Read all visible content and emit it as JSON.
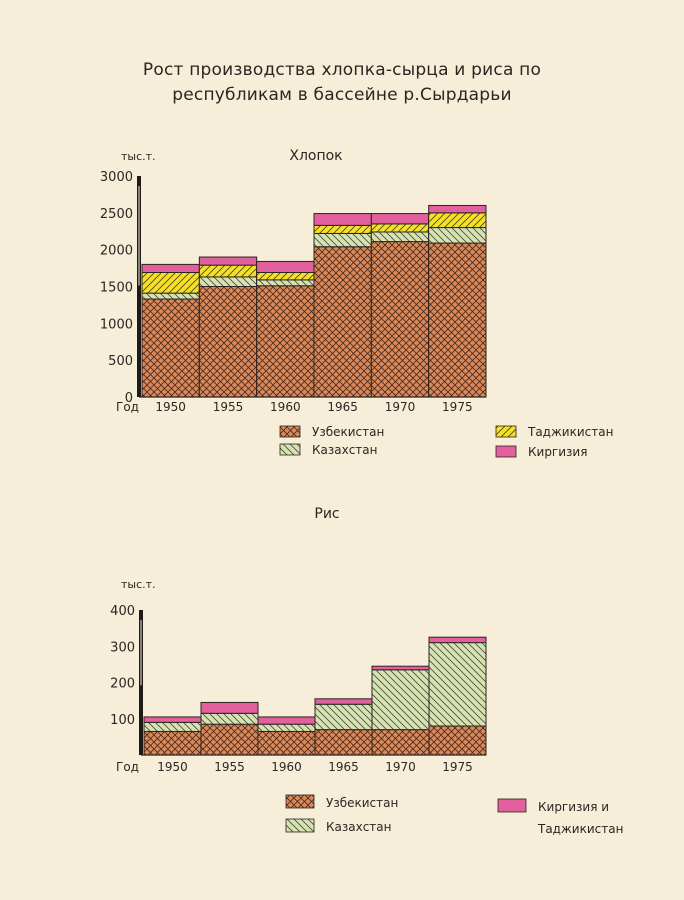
{
  "title": {
    "line1": "Рост производства хлопка-сырца и риса по",
    "line2": "республикам в бассейне р.Сырдарьи"
  },
  "x_axis_label": "Год",
  "unit_label": "тыс.т.",
  "colors": {
    "uzbekistan": "#d9885a",
    "kazakhstan": "#d6e2b2",
    "tajikistan": "#f4e024",
    "kirgizia": "#e2609e",
    "kirgizia_tajikistan": "#e2609e"
  },
  "chart_data": [
    {
      "type": "bar",
      "stacked": true,
      "subtitle": "Хлопок",
      "ylabel": "тыс.т.",
      "xlabel": "Год",
      "ylim": [
        0,
        3000
      ],
      "yticks": [
        0,
        500,
        1000,
        1500,
        2000,
        2500,
        3000
      ],
      "categories": [
        "1950",
        "1955",
        "1960",
        "1965",
        "1970",
        "1975"
      ],
      "series": [
        {
          "name": "Узбекистан",
          "key": "uzbekistan",
          "values": [
            1330,
            1500,
            1510,
            2040,
            2110,
            2090
          ]
        },
        {
          "name": "Казахстан",
          "key": "kazakhstan",
          "values": [
            80,
            130,
            80,
            180,
            130,
            210
          ]
        },
        {
          "name": "Таджикистан",
          "key": "tajikistan",
          "values": [
            280,
            160,
            100,
            110,
            110,
            200
          ]
        },
        {
          "name": "Киргизия",
          "key": "kirgizia",
          "values": [
            110,
            110,
            150,
            160,
            140,
            100
          ]
        }
      ],
      "legend": [
        {
          "name": "Узбекистан",
          "key": "uzbekistan"
        },
        {
          "name": "Таджикистан",
          "key": "tajikistan"
        },
        {
          "name": "Казахстан",
          "key": "kazakhstan"
        },
        {
          "name": "Киргизия",
          "key": "kirgizia"
        }
      ]
    },
    {
      "type": "bar",
      "stacked": true,
      "subtitle": "Рис",
      "ylabel": "тыс.т.",
      "xlabel": "Год",
      "ylim": [
        0,
        400
      ],
      "yticks": [
        100,
        200,
        300,
        400
      ],
      "categories": [
        "1950",
        "1955",
        "1960",
        "1965",
        "1970",
        "1975"
      ],
      "series": [
        {
          "name": "Узбекистан",
          "key": "uzbekistan",
          "values": [
            65,
            85,
            65,
            70,
            70,
            80
          ]
        },
        {
          "name": "Казахстан",
          "key": "kazakhstan",
          "values": [
            25,
            30,
            20,
            70,
            165,
            230
          ]
        },
        {
          "name": "Киргизия и Таджикистан",
          "key": "kirgizia_tajikistan",
          "values": [
            15,
            30,
            20,
            15,
            10,
            15
          ]
        }
      ],
      "legend": [
        {
          "name": "Узбекистан",
          "key": "uzbekistan"
        },
        {
          "name": "Киргизия и",
          "key": "kirgizia_tajikistan",
          "second_line": "Таджикистан"
        },
        {
          "name": "Казахстан",
          "key": "kazakhstan"
        }
      ]
    }
  ]
}
